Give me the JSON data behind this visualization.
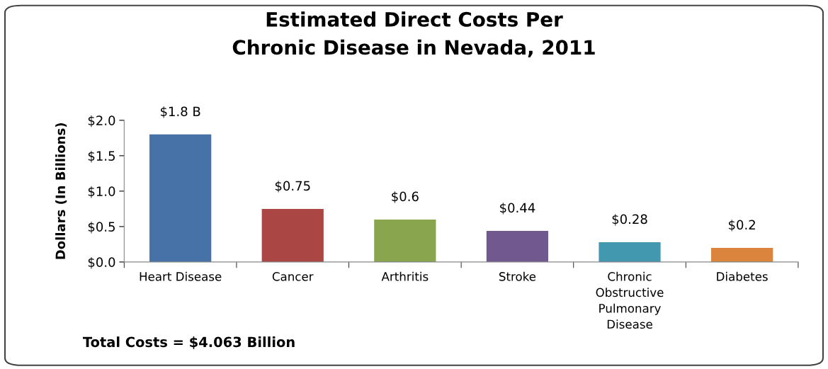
{
  "chart_data": {
    "type": "bar",
    "title": "Estimated Direct Costs Per\nChronic Disease in Nevada, 2011",
    "ylabel": "Dollars (In Billions)",
    "categories": [
      "Heart Disease",
      "Cancer",
      "Arthritis",
      "Stroke",
      "Chronic\nObstructive\nPulmonary\nDisease",
      "Diabetes"
    ],
    "values": [
      1.8,
      0.75,
      0.6,
      0.44,
      0.28,
      0.2
    ],
    "colors": [
      "#4672a8",
      "#aa4744",
      "#89a54e",
      "#71588f",
      "#4298af",
      "#db843d"
    ],
    "value_labels": [
      "$1.8 B",
      "$0.75",
      "$0.6",
      "$0.44",
      "$0.28",
      "$0.2"
    ],
    "ylim": [
      0,
      2
    ],
    "yticks": [
      {
        "value": 0,
        "label": "$0.0"
      },
      {
        "value": 0.5,
        "label": "$0.5"
      },
      {
        "value": 1,
        "label": "$1.0"
      },
      {
        "value": 1.5,
        "label": "$1.5"
      },
      {
        "value": 2,
        "label": "$2.0"
      }
    ],
    "grid": false,
    "annotations": [
      "Total Costs = $4.063 Billion"
    ]
  }
}
